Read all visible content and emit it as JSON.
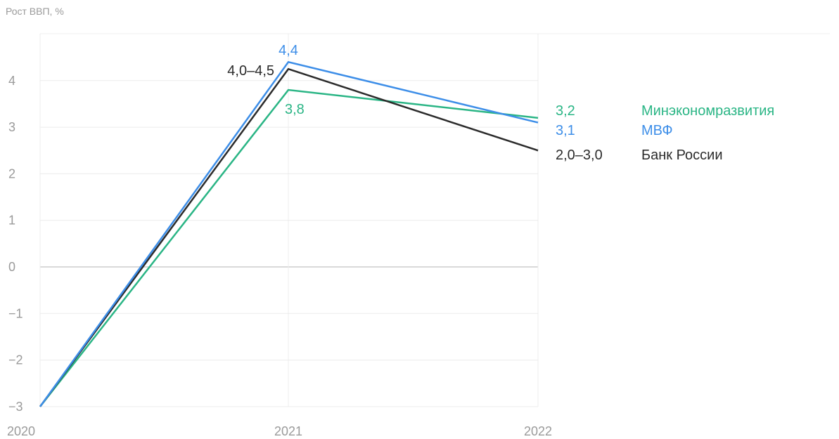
{
  "chart_data": {
    "type": "line",
    "ylabel": "Рост ВВП, %",
    "xlabel": "",
    "x": [
      "2020",
      "2021",
      "2022"
    ],
    "ylim": [
      -3,
      5
    ],
    "yticks": [
      4,
      3,
      2,
      1,
      0,
      -1,
      -2,
      -3
    ],
    "ytick_labels": [
      "4",
      "3",
      "2",
      "1",
      "0",
      "−1",
      "−2",
      "−3"
    ],
    "grid": true,
    "series": [
      {
        "name": "Минэкономразвития",
        "color": "#2ab585",
        "values": [
          -3.0,
          3.8,
          3.2
        ],
        "labels": [
          "",
          "3,8",
          "3,2"
        ]
      },
      {
        "name": "МВФ",
        "color": "#3d8ee8",
        "values": [
          -3.0,
          4.4,
          3.1
        ],
        "labels": [
          "",
          "4,4",
          "3,1"
        ]
      },
      {
        "name": "Банк России",
        "color": "#2b2b2b",
        "values": [
          -3.0,
          4.25,
          2.5
        ],
        "labels": [
          "",
          "4,0–4,5",
          "2,0–3,0"
        ]
      }
    ]
  }
}
